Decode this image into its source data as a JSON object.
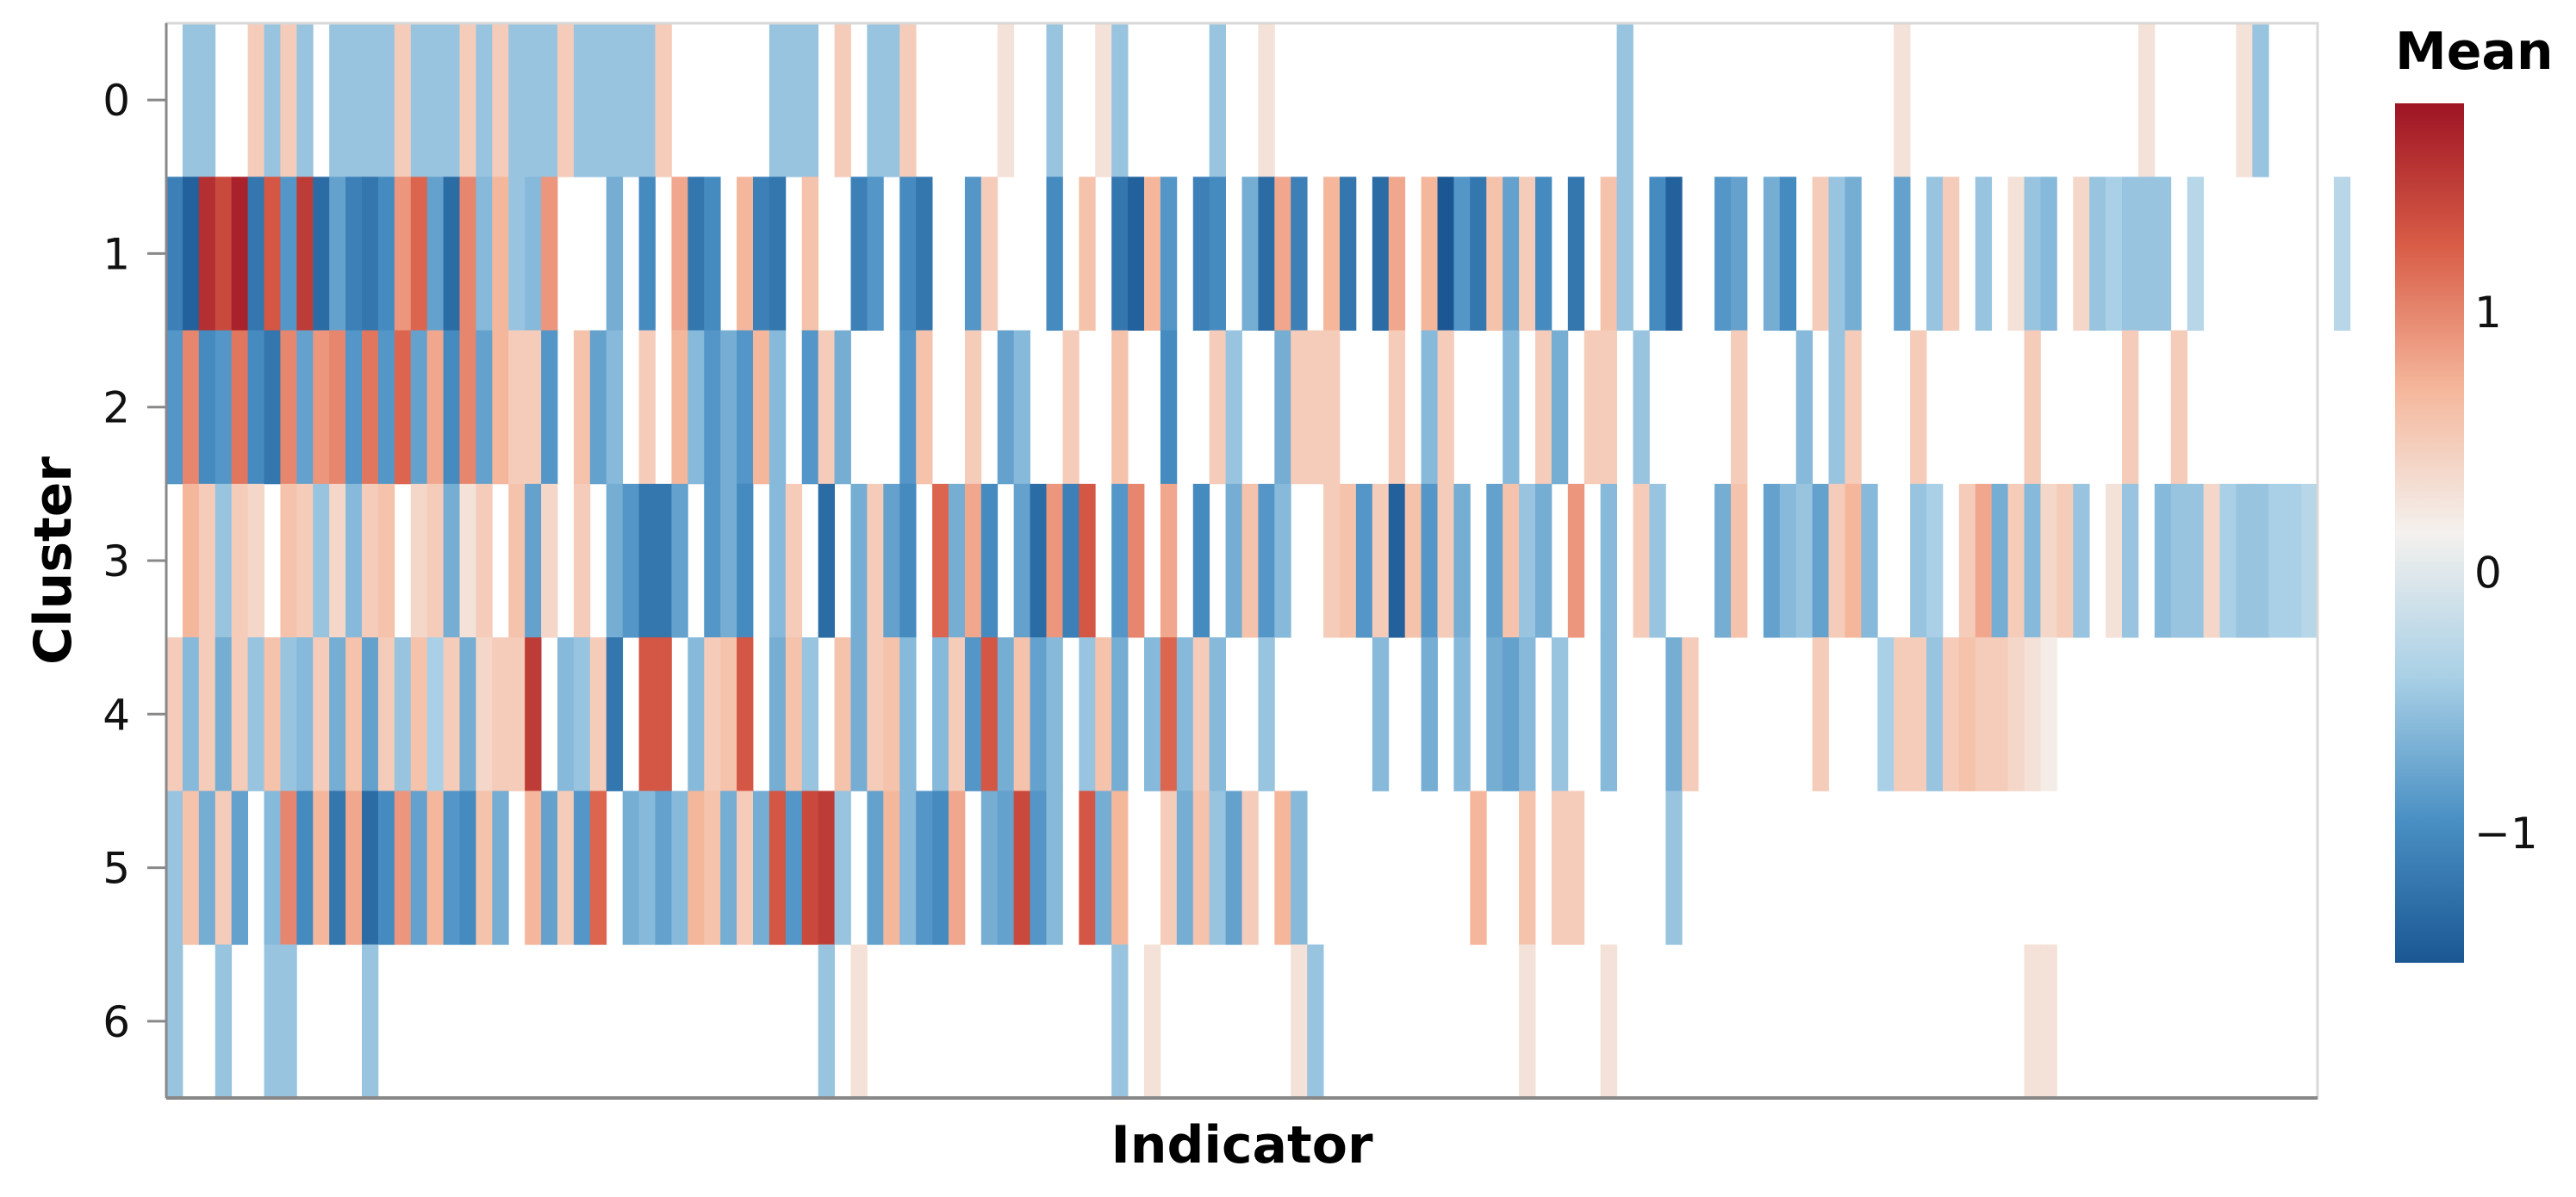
{
  "chart_data": {
    "type": "heatmap",
    "xlabel": "Indicator",
    "ylabel": "Cluster",
    "y_categories": [
      "0",
      "1",
      "2",
      "3",
      "4",
      "5",
      "6"
    ],
    "n_indicators": 132,
    "colorbar": {
      "title": "Mean",
      "range": [
        -1.5,
        1.8
      ],
      "ticks": [
        {
          "value": 1,
          "label": "1"
        },
        {
          "value": 0,
          "label": "0"
        },
        {
          "value": -1,
          "label": "−1"
        }
      ],
      "scheme": [
        "#1a5793",
        "#4a90c4",
        "#a9d0e6",
        "#f4f1ee",
        "#f5b79c",
        "#d95d47",
        "#9e1424"
      ]
    },
    "rows": [
      {
        "cluster": "0",
        "values": [
          null,
          -0.5,
          -0.5,
          null,
          null,
          0.5,
          -0.5,
          0.5,
          -0.5,
          null,
          -0.5,
          -0.5,
          -0.5,
          -0.5,
          0.5,
          -0.5,
          -0.5,
          -0.5,
          0.5,
          -0.5,
          0.5,
          -0.5,
          -0.5,
          -0.5,
          0.5,
          -0.5,
          -0.5,
          -0.5,
          -0.5,
          -0.5,
          0.5,
          null,
          null,
          null,
          null,
          null,
          null,
          -0.5,
          -0.5,
          -0.5,
          null,
          0.5,
          null,
          -0.5,
          -0.5,
          0.5,
          null,
          null,
          null,
          null,
          null,
          0.3,
          null,
          null,
          -0.5,
          null,
          null,
          0.3,
          -0.5,
          null,
          null,
          null,
          null,
          null,
          -0.5,
          null,
          null,
          0.3,
          null,
          null,
          null,
          null,
          null,
          null,
          null,
          null,
          null,
          null,
          null,
          null,
          null,
          null,
          null,
          null,
          null,
          null,
          null,
          null,
          null,
          -0.5,
          null,
          null,
          null,
          null,
          null,
          null,
          null,
          null,
          null,
          null,
          null,
          null,
          null,
          null,
          null,
          null,
          0.3,
          null,
          null,
          null,
          null,
          null,
          null,
          null,
          null,
          null,
          null,
          null,
          null,
          null,
          null,
          0.3,
          null,
          null,
          null,
          null,
          null,
          0.3,
          -0.5,
          null,
          null,
          null,
          null,
          null,
          null,
          null,
          null,
          null
        ]
      },
      {
        "cluster": "1",
        "values": [
          -1.1,
          -1.4,
          1.6,
          1.4,
          1.7,
          -1.2,
          1.3,
          -0.9,
          1.5,
          -1.3,
          -0.8,
          -1.1,
          -1.2,
          -1.0,
          0.9,
          1.2,
          -0.8,
          -1.3,
          1.0,
          -0.6,
          0.7,
          -0.5,
          -0.6,
          0.9,
          null,
          null,
          null,
          -0.7,
          null,
          -1.0,
          null,
          0.8,
          -1.2,
          -1.0,
          null,
          0.7,
          -1.1,
          -1.2,
          null,
          0.6,
          null,
          null,
          -1.1,
          -0.9,
          null,
          -1.0,
          -1.2,
          null,
          null,
          -0.9,
          0.5,
          null,
          null,
          null,
          -1.0,
          null,
          0.6,
          null,
          -1.2,
          -1.4,
          0.7,
          -0.9,
          null,
          -1.1,
          -1.0,
          null,
          -0.7,
          -1.3,
          0.8,
          -1.1,
          null,
          0.7,
          -1.2,
          null,
          -1.3,
          0.8,
          null,
          0.7,
          -1.5,
          -0.9,
          -1.2,
          0.6,
          -0.8,
          0.5,
          -1.0,
          null,
          -1.2,
          null,
          0.6,
          -0.5,
          null,
          -1.0,
          -1.4,
          null,
          null,
          -0.9,
          -0.8,
          null,
          -0.7,
          -1.0,
          null,
          0.5,
          -0.5,
          -0.7,
          null,
          null,
          -0.8,
          null,
          -0.5,
          0.5,
          null,
          -0.5,
          null,
          0.3,
          -0.5,
          -0.6,
          null,
          0.4,
          -0.5,
          -0.4,
          -0.5,
          -0.5,
          -0.5,
          null,
          -0.3,
          null,
          null,
          null,
          null,
          null,
          null,
          null,
          null,
          -0.3
        ]
      },
      {
        "cluster": "2",
        "values": [
          -0.9,
          1.0,
          -1.0,
          -0.9,
          1.1,
          -1.0,
          -1.2,
          1.0,
          -0.8,
          0.9,
          1.0,
          -0.9,
          1.1,
          -0.9,
          1.2,
          -0.8,
          0.8,
          -1.0,
          1.0,
          -0.8,
          0.7,
          0.5,
          0.5,
          -0.9,
          null,
          0.6,
          -0.8,
          -0.6,
          null,
          0.5,
          null,
          0.7,
          -0.6,
          -0.9,
          -0.7,
          -0.9,
          0.7,
          -0.6,
          null,
          -0.9,
          0.5,
          -0.7,
          null,
          null,
          null,
          -0.9,
          0.6,
          null,
          null,
          0.5,
          null,
          -0.8,
          -0.6,
          null,
          null,
          0.5,
          null,
          null,
          0.6,
          null,
          null,
          -1.0,
          null,
          null,
          0.5,
          -0.5,
          null,
          null,
          -0.7,
          0.5,
          0.5,
          0.5,
          null,
          null,
          null,
          0.5,
          null,
          -0.6,
          0.5,
          null,
          null,
          null,
          -0.6,
          null,
          0.5,
          -0.7,
          null,
          0.5,
          0.5,
          null,
          -0.5,
          null,
          null,
          null,
          null,
          null,
          0.5,
          null,
          null,
          null,
          -0.6,
          null,
          -0.5,
          0.5,
          null,
          null,
          null,
          0.5,
          null,
          null,
          null,
          null,
          null,
          null,
          0.5,
          null,
          null,
          null,
          null,
          null,
          0.5,
          null,
          null,
          0.5,
          null,
          null,
          null,
          null,
          null,
          null,
          null,
          null
        ]
      },
      {
        "cluster": "3",
        "values": [
          null,
          0.7,
          0.5,
          -0.5,
          0.5,
          0.4,
          null,
          0.6,
          0.5,
          -0.5,
          0.4,
          -0.6,
          0.5,
          0.6,
          null,
          0.4,
          0.5,
          -0.7,
          0.3,
          0.5,
          null,
          0.6,
          -0.8,
          0.4,
          null,
          0.5,
          null,
          -0.7,
          -0.9,
          -1.2,
          -1.2,
          -0.8,
          null,
          -0.9,
          -0.7,
          -1.0,
          null,
          -0.6,
          0.5,
          null,
          -1.3,
          null,
          -0.7,
          0.5,
          -0.8,
          -1.0,
          null,
          1.2,
          -0.7,
          0.8,
          -1.0,
          null,
          -0.8,
          -1.3,
          0.9,
          -1.1,
          1.3,
          null,
          -0.9,
          1.0,
          null,
          0.8,
          null,
          -1.0,
          null,
          -0.7,
          0.6,
          -0.9,
          -0.6,
          null,
          null,
          0.5,
          0.6,
          -0.9,
          0.5,
          -1.4,
          0.6,
          -0.9,
          0.5,
          -0.7,
          null,
          -0.8,
          0.6,
          -0.5,
          -0.7,
          null,
          0.9,
          null,
          -0.6,
          null,
          0.5,
          -0.5,
          null,
          null,
          null,
          -0.7,
          0.6,
          null,
          -0.8,
          -0.6,
          -0.5,
          -0.8,
          0.5,
          0.7,
          -0.6,
          null,
          null,
          -0.5,
          -0.4,
          null,
          0.5,
          0.8,
          -0.7,
          0.5,
          -0.6,
          0.4,
          0.5,
          -0.5,
          null,
          0.3,
          -0.5,
          null,
          -0.6,
          -0.5,
          -0.5,
          0.4,
          -0.4,
          -0.5,
          -0.5,
          -0.4,
          -0.4,
          -0.3
        ]
      },
      {
        "cluster": "4",
        "values": [
          0.5,
          -0.6,
          0.5,
          -0.7,
          0.5,
          -0.5,
          0.6,
          -0.5,
          -0.6,
          0.5,
          -0.7,
          0.6,
          -0.8,
          0.5,
          -0.5,
          0.6,
          -0.4,
          0.5,
          -0.7,
          0.4,
          0.5,
          0.5,
          1.5,
          null,
          -0.6,
          -0.5,
          0.5,
          -1.2,
          null,
          1.3,
          1.3,
          null,
          -0.6,
          0.5,
          0.6,
          1.3,
          null,
          -0.7,
          0.6,
          -0.5,
          null,
          0.6,
          -0.7,
          0.5,
          0.6,
          -0.6,
          null,
          -0.6,
          0.5,
          -0.9,
          1.3,
          -0.7,
          0.6,
          -0.8,
          -0.6,
          null,
          -0.5,
          0.6,
          -0.7,
          null,
          -0.6,
          1.2,
          -0.6,
          0.5,
          -0.6,
          null,
          null,
          -0.5,
          null,
          null,
          null,
          null,
          null,
          null,
          -0.6,
          null,
          null,
          -0.7,
          null,
          -0.6,
          null,
          -0.7,
          -0.8,
          -0.6,
          null,
          -0.5,
          null,
          null,
          -0.6,
          null,
          null,
          null,
          -0.7,
          0.5,
          null,
          null,
          null,
          null,
          null,
          null,
          null,
          0.5,
          null,
          null,
          null,
          -0.4,
          0.5,
          0.5,
          -0.5,
          0.5,
          0.6,
          0.5,
          0.5,
          0.4,
          0.3,
          0.2,
          null,
          null,
          null,
          null,
          null,
          null,
          null,
          null,
          null,
          null,
          null,
          null,
          null,
          null,
          null,
          null
        ]
      },
      {
        "cluster": "5",
        "values": [
          -0.5,
          0.6,
          -0.7,
          0.5,
          -0.8,
          null,
          -0.6,
          1.0,
          -1.0,
          0.7,
          -1.2,
          0.8,
          -1.3,
          -1.0,
          0.9,
          -0.8,
          0.7,
          -0.9,
          -1.0,
          0.6,
          -0.7,
          null,
          0.7,
          -0.8,
          0.5,
          -0.9,
          1.2,
          null,
          -0.7,
          -0.6,
          -0.8,
          -0.6,
          0.7,
          0.6,
          -0.7,
          0.5,
          -0.7,
          1.3,
          -0.9,
          1.4,
          1.5,
          -0.5,
          null,
          -0.8,
          0.7,
          -0.6,
          -0.9,
          -1.0,
          0.8,
          null,
          -0.7,
          -0.8,
          1.4,
          -0.9,
          -0.6,
          null,
          1.3,
          -0.7,
          0.7,
          null,
          null,
          0.5,
          -0.7,
          0.6,
          -0.5,
          -0.8,
          0.5,
          null,
          0.7,
          -0.6,
          null,
          null,
          null,
          null,
          null,
          null,
          null,
          null,
          null,
          null,
          0.7,
          null,
          null,
          0.6,
          null,
          0.5,
          0.5,
          null,
          null,
          null,
          null,
          null,
          -0.5,
          null,
          null,
          null,
          null,
          null,
          null,
          null,
          null,
          null,
          null,
          null,
          null,
          null,
          null,
          null,
          null,
          null,
          null,
          null,
          null,
          null,
          null,
          null,
          null,
          null,
          null,
          null,
          null,
          null,
          null,
          null,
          null,
          null,
          null,
          null,
          null,
          null,
          null,
          null,
          null,
          null
        ]
      },
      {
        "cluster": "6",
        "values": [
          -0.5,
          null,
          null,
          -0.5,
          null,
          null,
          -0.5,
          -0.5,
          null,
          null,
          null,
          null,
          -0.5,
          null,
          null,
          null,
          null,
          null,
          null,
          null,
          null,
          null,
          null,
          null,
          null,
          null,
          null,
          null,
          null,
          null,
          null,
          null,
          null,
          null,
          null,
          null,
          null,
          null,
          null,
          null,
          -0.5,
          null,
          0.3,
          null,
          null,
          null,
          null,
          null,
          null,
          null,
          null,
          null,
          null,
          null,
          null,
          null,
          null,
          null,
          -0.5,
          null,
          0.3,
          null,
          null,
          null,
          null,
          null,
          null,
          null,
          null,
          0.3,
          -0.5,
          null,
          null,
          null,
          null,
          null,
          null,
          null,
          null,
          null,
          null,
          null,
          null,
          0.3,
          null,
          null,
          null,
          null,
          0.3,
          null,
          null,
          null,
          null,
          null,
          null,
          null,
          null,
          null,
          null,
          null,
          null,
          null,
          null,
          null,
          null,
          null,
          null,
          null,
          null,
          null,
          null,
          null,
          null,
          null,
          0.3,
          0.3,
          null,
          null,
          null,
          null,
          null,
          null,
          null,
          null,
          null,
          null,
          null,
          null,
          null,
          null,
          null,
          null,
          null,
          null,
          null
        ]
      }
    ]
  }
}
